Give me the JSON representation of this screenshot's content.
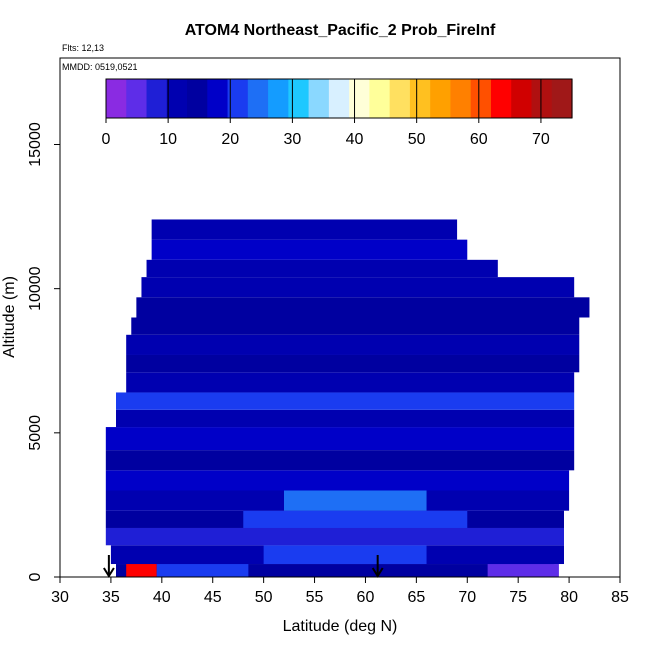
{
  "chart_data": {
    "type": "heatmap",
    "title": "ATOM4 Northeast_Pacific_2 Prob_FireInf",
    "annotations": [
      "Flts: 12,13",
      "MMDD: 0519,0521"
    ],
    "xlabel": "Latitude (deg N)",
    "ylabel": "Altitude (m)",
    "xlim": [
      30,
      85
    ],
    "ylim": [
      0,
      18000
    ],
    "x_ticks": [
      "30",
      "35",
      "40",
      "45",
      "50",
      "55",
      "60",
      "65",
      "70",
      "75",
      "80",
      "85"
    ],
    "y_ticks": [
      "0",
      "5000",
      "10000",
      "15000"
    ],
    "colorbar": {
      "ticks": [
        "0",
        "10",
        "20",
        "30",
        "40",
        "50",
        "60",
        "70"
      ],
      "range": [
        0,
        75
      ],
      "colors": [
        "#8a2be2",
        "#5e2de8",
        "#1f1fd6",
        "#0000b0",
        "#0000a0",
        "#0000c8",
        "#1a3cf0",
        "#1e6ff5",
        "#149cff",
        "#1ec8ff",
        "#8ad8ff",
        "#d8f0ff",
        "#ffffd8",
        "#ffff9a",
        "#ffe060",
        "#ffc020",
        "#ffa000",
        "#ff8000",
        "#ff5000",
        "#ff0000",
        "#d00000",
        "#b01010",
        "#a01818"
      ]
    },
    "arrows_latitude": [
      34.8,
      61.2
    ],
    "cells": [
      {
        "lat": 35.5,
        "lat_end": 78.5,
        "alt": 0,
        "alt_end": 450,
        "value": 14
      },
      {
        "lat": 36.5,
        "lat_end": 39.5,
        "alt": 0,
        "alt_end": 450,
        "value": 62
      },
      {
        "lat": 39.5,
        "lat_end": 48.5,
        "alt": 0,
        "alt_end": 450,
        "value": 20
      },
      {
        "lat": 72.0,
        "lat_end": 79.0,
        "alt": 0,
        "alt_end": 450,
        "value": 4
      },
      {
        "lat": 35.0,
        "lat_end": 79.5,
        "alt": 450,
        "alt_end": 1100,
        "value": 12
      },
      {
        "lat": 50.0,
        "lat_end": 66.0,
        "alt": 450,
        "alt_end": 1100,
        "value": 22
      },
      {
        "lat": 34.5,
        "lat_end": 79.5,
        "alt": 1100,
        "alt_end": 1700,
        "value": 9
      },
      {
        "lat": 34.5,
        "lat_end": 79.5,
        "alt": 1700,
        "alt_end": 2300,
        "value": 16
      },
      {
        "lat": 48.0,
        "lat_end": 70.0,
        "alt": 1700,
        "alt_end": 2300,
        "value": 21
      },
      {
        "lat": 34.5,
        "lat_end": 80.0,
        "alt": 2300,
        "alt_end": 3000,
        "value": 11
      },
      {
        "lat": 52.0,
        "lat_end": 66.0,
        "alt": 2300,
        "alt_end": 3000,
        "value": 25
      },
      {
        "lat": 34.5,
        "lat_end": 80.0,
        "alt": 3000,
        "alt_end": 3700,
        "value": 17
      },
      {
        "lat": 34.5,
        "lat_end": 80.5,
        "alt": 3700,
        "alt_end": 4400,
        "value": 14
      },
      {
        "lat": 34.5,
        "lat_end": 80.5,
        "alt": 4400,
        "alt_end": 5200,
        "value": 18
      },
      {
        "lat": 35.5,
        "lat_end": 80.5,
        "alt": 5200,
        "alt_end": 5800,
        "value": 10
      },
      {
        "lat": 35.5,
        "lat_end": 80.5,
        "alt": 5800,
        "alt_end": 6400,
        "value": 21
      },
      {
        "lat": 36.5,
        "lat_end": 80.5,
        "alt": 6400,
        "alt_end": 7100,
        "value": 12
      },
      {
        "lat": 36.5,
        "lat_end": 81.0,
        "alt": 7100,
        "alt_end": 7700,
        "value": 16
      },
      {
        "lat": 36.5,
        "lat_end": 81.0,
        "alt": 7700,
        "alt_end": 8400,
        "value": 13
      },
      {
        "lat": 37.0,
        "lat_end": 81.0,
        "alt": 8400,
        "alt_end": 9000,
        "value": 15
      },
      {
        "lat": 37.5,
        "lat_end": 82.0,
        "alt": 9000,
        "alt_end": 9700,
        "value": 14
      },
      {
        "lat": 38.0,
        "lat_end": 80.5,
        "alt": 9700,
        "alt_end": 10400,
        "value": 12
      },
      {
        "lat": 38.5,
        "lat_end": 73.0,
        "alt": 10400,
        "alt_end": 11000,
        "value": 10
      },
      {
        "lat": 39.0,
        "lat_end": 70.0,
        "alt": 11000,
        "alt_end": 11700,
        "value": 18
      },
      {
        "lat": 39.0,
        "lat_end": 69.0,
        "alt": 11700,
        "alt_end": 12400,
        "value": 13
      }
    ]
  }
}
